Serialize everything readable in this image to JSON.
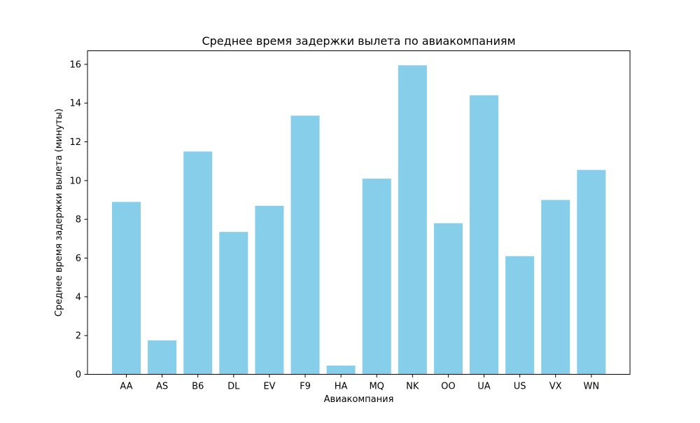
{
  "chart_data": {
    "type": "bar",
    "title": "Среднее время задержки вылета по авиакомпаниям",
    "xlabel": "Авиакомпания",
    "ylabel": "Среднее время задержки вылета (минуты)",
    "categories": [
      "AA",
      "AS",
      "B6",
      "DL",
      "EV",
      "F9",
      "HA",
      "MQ",
      "NK",
      "OO",
      "UA",
      "US",
      "VX",
      "WN"
    ],
    "values": [
      8.9,
      1.75,
      11.5,
      7.35,
      8.7,
      13.35,
      0.45,
      10.1,
      15.95,
      7.8,
      14.4,
      6.1,
      9.0,
      10.55
    ],
    "ylim": [
      0,
      16.7
    ],
    "yticks": [
      0,
      2,
      4,
      6,
      8,
      10,
      12,
      14,
      16
    ],
    "bar_color": "#87ceeb",
    "grid": false,
    "legend": "none"
  }
}
